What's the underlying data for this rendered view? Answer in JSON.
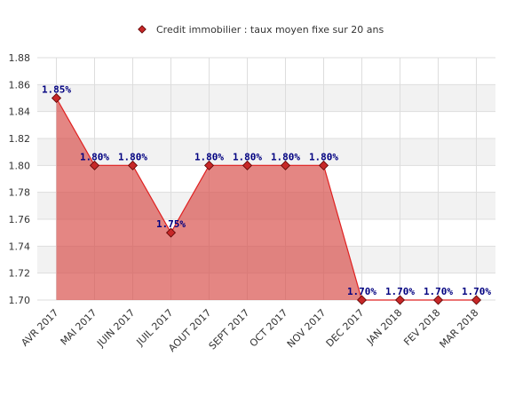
{
  "chart_data": {
    "type": "area",
    "legend": "Credit immobilier : taux moyen fixe sur 20 ans",
    "categories": [
      "AVR 2017",
      "MAI 2017",
      "JUIN 2017",
      "JUIL 2017",
      "AOUT 2017",
      "SEPT 2017",
      "OCT 2017",
      "NOV 2017",
      "DEC 2017",
      "JAN 2018",
      "FEV 2018",
      "MAR 2018"
    ],
    "series": [
      {
        "name": "Credit immobilier : taux moyen fixe sur 20 ans",
        "color": "#e02020",
        "fill": "#d9534f",
        "values": [
          1.85,
          1.8,
          1.8,
          1.75,
          1.8,
          1.8,
          1.8,
          1.8,
          1.7,
          1.7,
          1.7,
          1.7
        ],
        "value_labels": [
          "1.85%",
          "1.80%",
          "1.80%",
          "1.75%",
          "1.80%",
          "1.80%",
          "1.80%",
          "1.80%",
          "1.70%",
          "1.70%",
          "1.70%",
          "1.70%"
        ]
      }
    ],
    "ylim": [
      1.7,
      1.88
    ],
    "yticks": [
      {
        "value": 1.7,
        "label": "1.70"
      },
      1.72,
      1.74,
      1.76,
      1.78,
      {
        "value": 1.8,
        "label": "1.80"
      },
      1.82,
      1.84,
      1.86,
      1.88
    ],
    "grid": true
  }
}
